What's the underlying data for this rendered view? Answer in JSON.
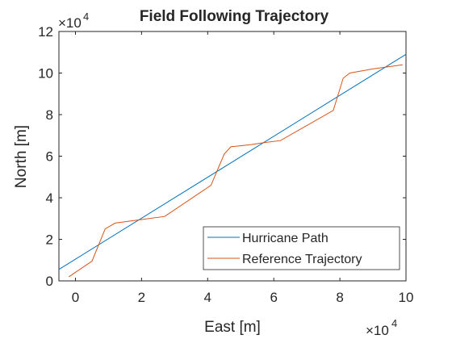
{
  "chart_data": {
    "type": "line",
    "title": "Field Following Trajectory",
    "xlabel": "East [m]",
    "ylabel": "North [m]",
    "x_multiplier": "×10",
    "x_exponent": "4",
    "y_multiplier": "×10",
    "y_exponent": "4",
    "xlim": [
      -5000,
      100000
    ],
    "ylim": [
      0,
      120000
    ],
    "xticks": [
      0,
      20000,
      40000,
      60000,
      80000,
      100000
    ],
    "xtick_labels": [
      "0",
      "2",
      "4",
      "6",
      "8",
      "10"
    ],
    "yticks": [
      0,
      20000,
      40000,
      60000,
      80000,
      100000,
      120000
    ],
    "ytick_labels": [
      "0",
      "2",
      "4",
      "6",
      "8",
      "10",
      "12"
    ],
    "grid": false,
    "legend_position": "bottom-right",
    "series": [
      {
        "name": "Hurricane Path",
        "color": "#0072BD",
        "x": [
          -5000,
          100000
        ],
        "y": [
          5500,
          109000
        ]
      },
      {
        "name": "Reference Trajectory",
        "color": "#D95319",
        "x": [
          -2000,
          5000,
          9000,
          12000,
          20000,
          27000,
          41000,
          45000,
          47000,
          53000,
          57000,
          62000,
          78000,
          81000,
          83000,
          90000,
          99000
        ],
        "y": [
          2000,
          9500,
          25000,
          27800,
          29500,
          31000,
          46000,
          61000,
          64500,
          65500,
          66500,
          67500,
          82000,
          97500,
          100000,
          102000,
          104000
        ]
      }
    ]
  }
}
